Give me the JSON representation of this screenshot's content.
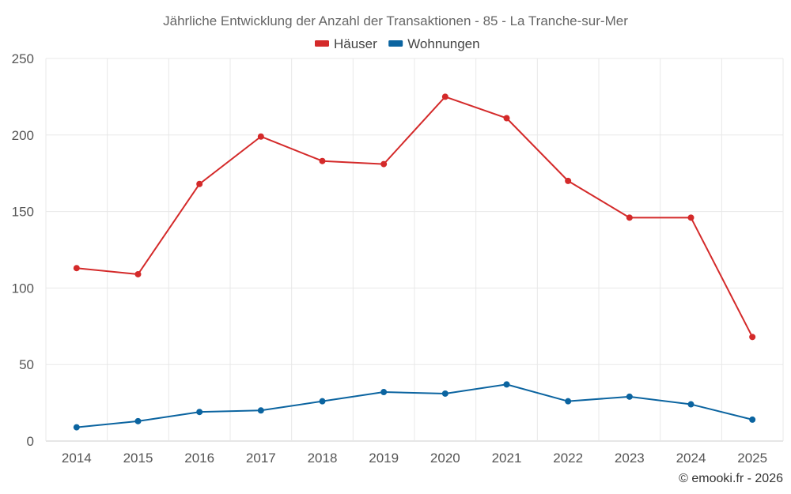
{
  "chart_data": {
    "type": "line",
    "title": "Jährliche Entwicklung der Anzahl der Transaktionen - 85 - La Tranche-sur-Mer",
    "categories": [
      "2014",
      "2015",
      "2016",
      "2017",
      "2018",
      "2019",
      "2020",
      "2021",
      "2022",
      "2023",
      "2024",
      "2025"
    ],
    "series": [
      {
        "name": "Häuser",
        "color": "#d42a2a",
        "values": [
          113,
          109,
          168,
          199,
          183,
          181,
          225,
          211,
          170,
          146,
          146,
          68
        ]
      },
      {
        "name": "Wohnungen",
        "color": "#0b64a0",
        "values": [
          9,
          13,
          19,
          20,
          26,
          32,
          31,
          37,
          26,
          29,
          24,
          14
        ]
      }
    ],
    "ylim": [
      0,
      250
    ],
    "yticks": [
      0,
      50,
      100,
      150,
      200,
      250
    ],
    "xlabel": "",
    "ylabel": "",
    "grid": true,
    "legend_position": "top-center"
  },
  "credit": "© emooki.fr - 2026"
}
